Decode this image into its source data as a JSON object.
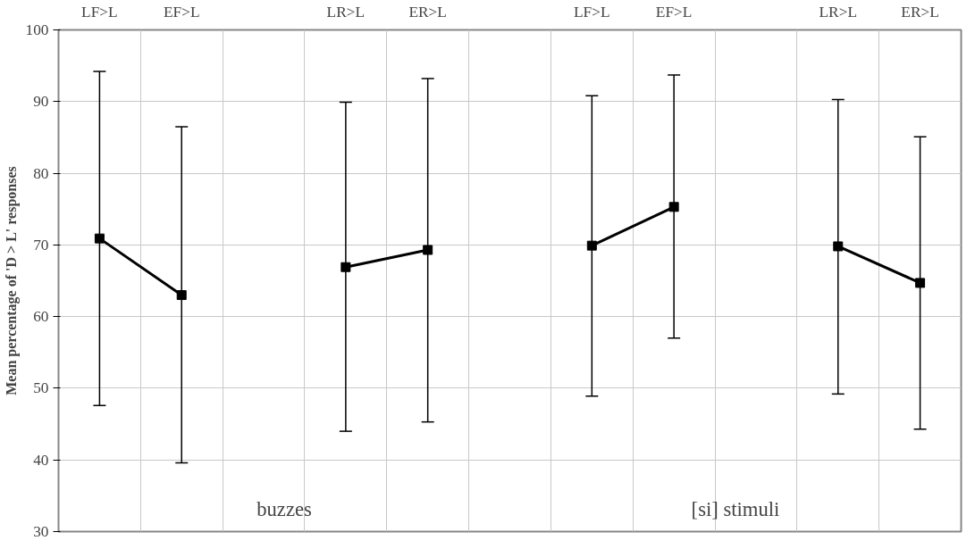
{
  "chart_data": {
    "type": "line",
    "ylabel": "Mean percentage of 'D > L' responses",
    "categories": [
      "LF>L",
      "EF>L",
      null,
      "LR>L",
      "ER>L",
      null,
      "LF>L",
      "EF>L",
      null,
      "LR>L",
      "ER>L"
    ],
    "series": [
      {
        "color": "#000000",
        "values": [
          70.9,
          63.0,
          null,
          66.9,
          69.3,
          null,
          69.9,
          75.3,
          null,
          69.8,
          64.7
        ],
        "errors": [
          [
            47.6,
            94.2
          ],
          [
            39.6,
            86.5
          ],
          null,
          [
            44.0,
            89.9
          ],
          [
            45.3,
            93.2
          ],
          null,
          [
            48.9,
            90.8
          ],
          [
            57.0,
            93.7
          ],
          null,
          [
            49.2,
            90.3
          ],
          [
            44.3,
            85.1
          ]
        ]
      }
    ],
    "ylim": [
      30,
      100
    ],
    "yticks": [
      30,
      40,
      50,
      60,
      70,
      80,
      90,
      100
    ],
    "annotations": [
      "buzzes",
      "[si] stimuli"
    ],
    "grid": true,
    "marker": "square",
    "line_style": "solid"
  }
}
